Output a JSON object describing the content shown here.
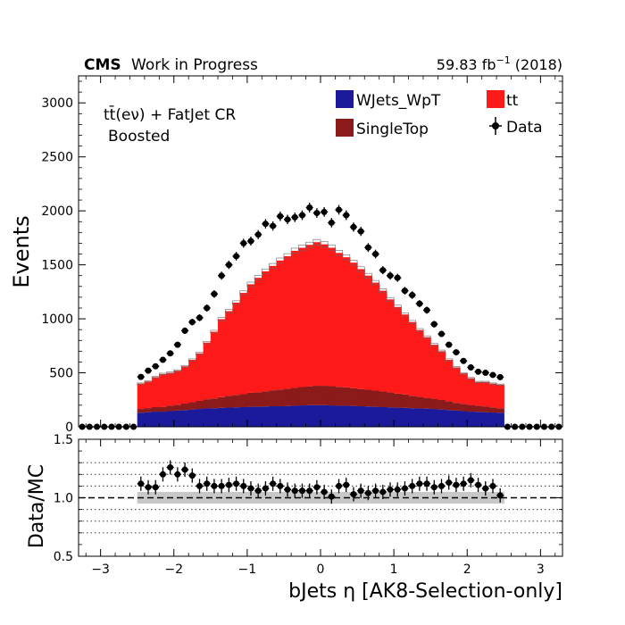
{
  "header": {
    "cms": "CMS",
    "wip": "Work in Progress",
    "lumi": "59.83 fb",
    "lumi_exp": "−1",
    "year": " (2018)"
  },
  "annotation": {
    "line1": "tt̄(eν) + FatJet CR",
    "line2": "Boosted"
  },
  "colors": {
    "wjets": "#1a1a9a",
    "singletop": "#8b1a1a",
    "tt": "#ff1a1a",
    "data": "#000000",
    "uncert_band": "#c8c8c8"
  },
  "chart_data": [
    {
      "type": "bar",
      "stacked": true,
      "title": "",
      "xlabel": "",
      "ylabel": "Events",
      "xlim": [
        -3.3,
        3.3
      ],
      "ylim": [
        0,
        3250
      ],
      "yticks": [
        0,
        500,
        1000,
        1500,
        2000,
        2500,
        3000
      ],
      "legend_position": "top-right",
      "bin_width": 0.1,
      "x": [
        -3.25,
        -3.15,
        -3.05,
        -2.95,
        -2.85,
        -2.75,
        -2.65,
        -2.55,
        -2.45,
        -2.35,
        -2.25,
        -2.15,
        -2.05,
        -1.95,
        -1.85,
        -1.75,
        -1.65,
        -1.55,
        -1.45,
        -1.35,
        -1.25,
        -1.15,
        -1.05,
        -0.95,
        -0.85,
        -0.75,
        -0.65,
        -0.55,
        -0.45,
        -0.35,
        -0.25,
        -0.15,
        -0.05,
        0.05,
        0.15,
        0.25,
        0.35,
        0.45,
        0.55,
        0.65,
        0.75,
        0.85,
        0.95,
        1.05,
        1.15,
        1.25,
        1.35,
        1.45,
        1.55,
        1.65,
        1.75,
        1.85,
        1.95,
        2.05,
        2.15,
        2.25,
        2.35,
        2.45,
        2.55,
        2.65,
        2.75,
        2.85,
        2.95,
        3.05,
        3.15,
        3.25
      ],
      "series": [
        {
          "name": "WJets_WpT",
          "color": "#1a1a9a",
          "values": [
            0,
            0,
            0,
            0,
            0,
            0,
            0,
            0,
            130,
            135,
            140,
            140,
            145,
            150,
            155,
            160,
            165,
            170,
            172,
            175,
            178,
            180,
            182,
            185,
            185,
            188,
            190,
            190,
            192,
            195,
            198,
            200,
            200,
            200,
            198,
            195,
            195,
            193,
            190,
            188,
            185,
            182,
            180,
            177,
            175,
            172,
            170,
            168,
            165,
            160,
            155,
            150,
            145,
            140,
            138,
            135,
            132,
            130,
            0,
            0,
            0,
            0,
            0,
            0,
            0,
            0
          ]
        },
        {
          "name": "SingleTop",
          "color": "#8b1a1a",
          "values": [
            0,
            0,
            0,
            0,
            0,
            0,
            0,
            0,
            35,
            38,
            42,
            45,
            50,
            55,
            60,
            68,
            75,
            85,
            90,
            100,
            110,
            115,
            120,
            130,
            135,
            140,
            148,
            155,
            160,
            165,
            170,
            175,
            180,
            180,
            178,
            175,
            170,
            165,
            160,
            155,
            150,
            145,
            138,
            130,
            125,
            115,
            108,
            100,
            95,
            88,
            80,
            72,
            68,
            62,
            58,
            54,
            48,
            42,
            0,
            0,
            0,
            0,
            0,
            0,
            0,
            0
          ]
        },
        {
          "name": "tt",
          "color": "#ff1a1a",
          "values": [
            0,
            0,
            0,
            0,
            0,
            0,
            0,
            0,
            235,
            247,
            278,
            304,
            305,
            315,
            345,
            392,
            440,
            525,
            618,
            722,
            783,
            855,
            938,
            1005,
            1060,
            1112,
            1152,
            1195,
            1228,
            1270,
            1290,
            1310,
            1330,
            1310,
            1282,
            1240,
            1205,
            1162,
            1110,
            1057,
            1000,
            933,
            862,
            803,
            740,
            683,
            618,
            562,
            500,
            452,
            385,
            328,
            282,
            248,
            219,
            226,
            220,
            218,
            0,
            0,
            0,
            0,
            0,
            0,
            0,
            0
          ]
        }
      ],
      "data": {
        "name": "Data",
        "values": [
          0,
          0,
          0,
          0,
          0,
          0,
          0,
          0,
          462,
          520,
          560,
          620,
          680,
          760,
          890,
          970,
          1010,
          1100,
          1230,
          1400,
          1500,
          1580,
          1700,
          1720,
          1780,
          1880,
          1860,
          1950,
          1920,
          1940,
          1960,
          2030,
          1980,
          1990,
          1890,
          2010,
          1960,
          1850,
          1810,
          1660,
          1600,
          1450,
          1400,
          1380,
          1260,
          1220,
          1140,
          1080,
          950,
          860,
          760,
          690,
          610,
          550,
          510,
          500,
          480,
          460,
          0,
          0,
          0,
          0,
          0,
          0,
          0,
          0
        ]
      }
    },
    {
      "type": "scatter",
      "title": "",
      "xlabel": "bJets η [AK8-Selection-only]",
      "ylabel": "Data/MC",
      "xlim": [
        -3.3,
        3.3
      ],
      "ylim": [
        0.5,
        1.5
      ],
      "yticks": [
        "0.5",
        "1.0",
        "1.5"
      ],
      "xticks": [
        "−3",
        "−2",
        "−1",
        "0",
        "1",
        "2",
        "3"
      ],
      "xtick_values": [
        -3,
        -2,
        -1,
        0,
        1,
        2,
        3
      ],
      "reference_line": 1.0,
      "grid_lines": [
        0.7,
        0.8,
        0.9,
        1.1,
        1.2,
        1.3
      ],
      "x": [
        -2.45,
        -2.35,
        -2.25,
        -2.15,
        -2.05,
        -1.95,
        -1.85,
        -1.75,
        -1.65,
        -1.55,
        -1.45,
        -1.35,
        -1.25,
        -1.15,
        -1.05,
        -0.95,
        -0.85,
        -0.75,
        -0.65,
        -0.55,
        -0.45,
        -0.35,
        -0.25,
        -0.15,
        -0.05,
        0.05,
        0.15,
        0.25,
        0.35,
        0.45,
        0.55,
        0.65,
        0.75,
        0.85,
        0.95,
        1.05,
        1.15,
        1.25,
        1.35,
        1.45,
        1.55,
        1.65,
        1.75,
        1.85,
        1.95,
        2.05,
        2.15,
        2.25,
        2.35,
        2.45
      ],
      "values": [
        1.12,
        1.09,
        1.09,
        1.2,
        1.26,
        1.2,
        1.24,
        1.19,
        1.1,
        1.12,
        1.1,
        1.1,
        1.11,
        1.12,
        1.1,
        1.08,
        1.06,
        1.08,
        1.12,
        1.1,
        1.07,
        1.06,
        1.06,
        1.06,
        1.09,
        1.05,
        1.01,
        1.1,
        1.11,
        1.03,
        1.06,
        1.04,
        1.06,
        1.05,
        1.07,
        1.07,
        1.08,
        1.1,
        1.12,
        1.12,
        1.09,
        1.1,
        1.13,
        1.11,
        1.12,
        1.15,
        1.11,
        1.08,
        1.1,
        1.02
      ],
      "band_halfwidth": 0.05
    }
  ]
}
